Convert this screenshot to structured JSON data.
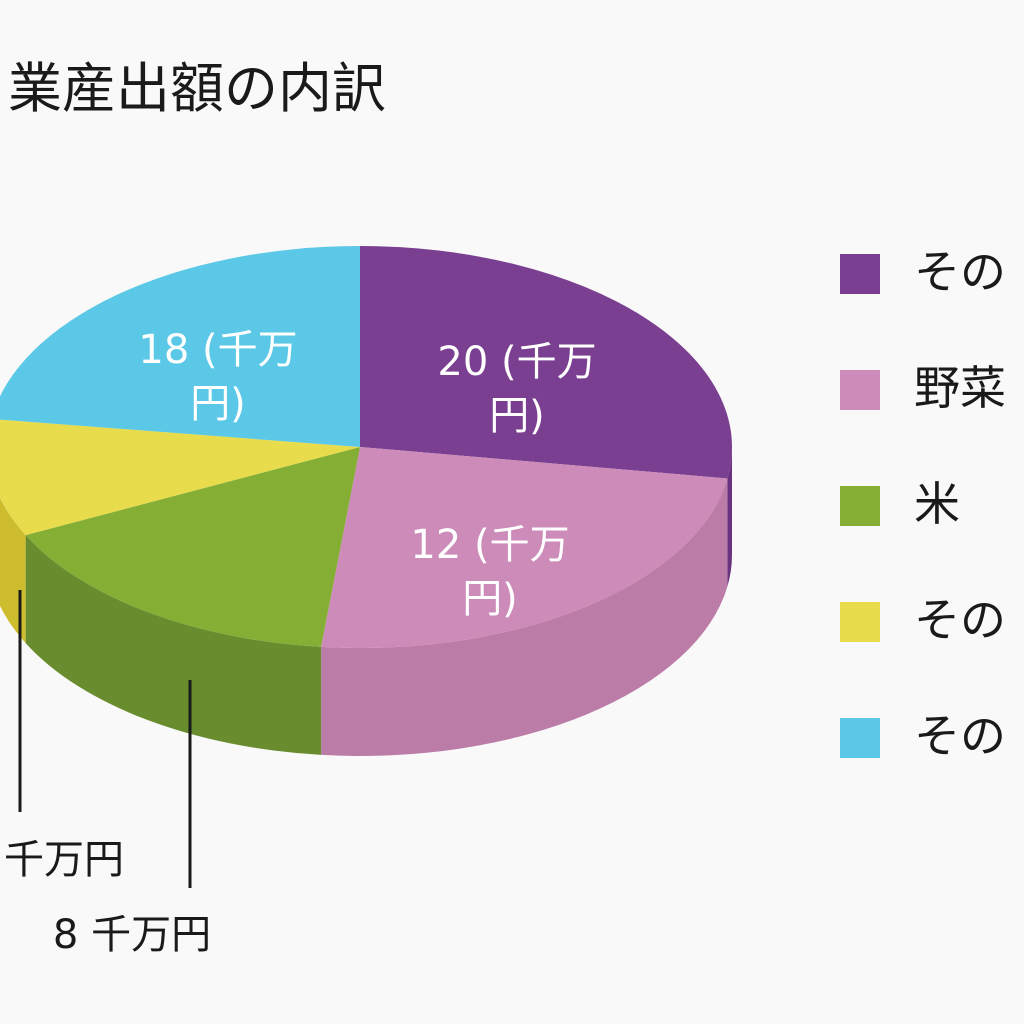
{
  "chart_data": {
    "type": "pie",
    "title": "業産出額の内訳",
    "slices": [
      {
        "legend": "その",
        "value": 20,
        "label_lines": [
          "20 (千万",
          "円)"
        ],
        "color": "#7a3f91",
        "side_color": "#693380"
      },
      {
        "legend": "野菜",
        "value": 12,
        "label_lines": [
          "12 (千万",
          "円)"
        ],
        "color": "#cc8bb8",
        "side_color": "#bc7ca8"
      },
      {
        "legend": "米",
        "value": 8,
        "label_lines": [
          "8 千万円"
        ],
        "color": "#84ae34",
        "side_color": "#688c2e"
      },
      {
        "legend": "その",
        "value": null,
        "label_lines": [
          "千万円"
        ],
        "color": "#e8dc4c",
        "side_color": "#cdbc2e"
      },
      {
        "legend": "その",
        "value": 18,
        "label_lines": [
          "18 (千万",
          "円)"
        ],
        "color": "#5ac8e6",
        "side_color": "#44b0cf"
      }
    ],
    "legend_position": "right"
  }
}
